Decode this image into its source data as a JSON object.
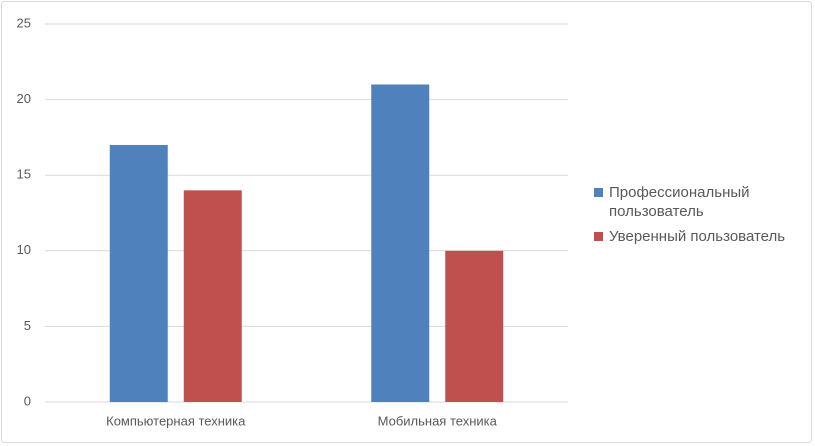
{
  "chart_data": {
    "type": "bar",
    "categories": [
      "Компьютерная техника",
      "Мобильная техника"
    ],
    "series": [
      {
        "name": "Профессиональный пользователь",
        "color": "#4f81bd",
        "values": [
          17,
          21
        ]
      },
      {
        "name": "Уверенный пользователь",
        "color": "#c0504d",
        "values": [
          14,
          10
        ]
      }
    ],
    "ylim": [
      0,
      25
    ],
    "yticks": [
      0,
      5,
      10,
      15,
      20,
      25
    ],
    "grid": true,
    "legend": "right"
  }
}
